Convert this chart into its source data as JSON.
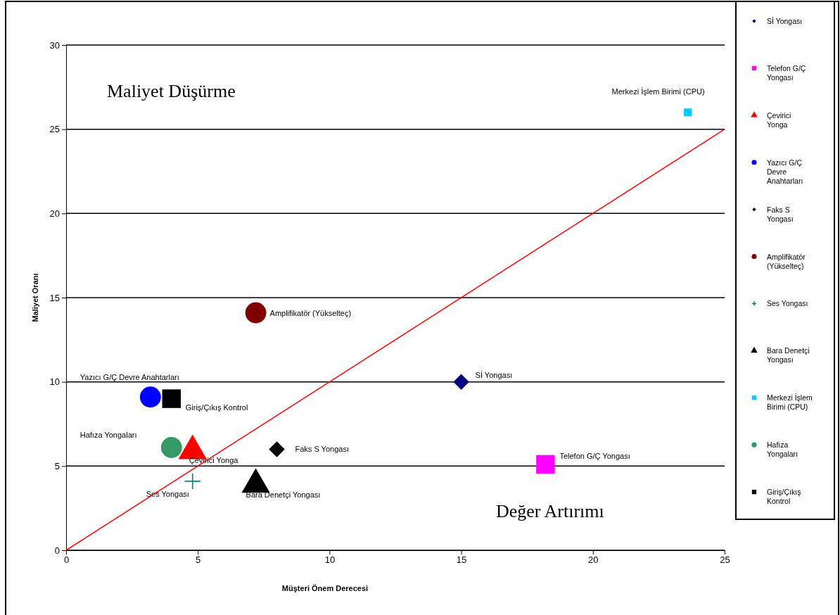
{
  "chart_data": {
    "type": "scatter",
    "xlabel": "Müşteri Önem Derecesi",
    "ylabel": "Maliyet Oranı",
    "xlim": [
      0,
      25
    ],
    "ylim": [
      0,
      30
    ],
    "xticks": [
      0,
      5,
      10,
      15,
      20,
      25
    ],
    "yticks": [
      0,
      5,
      10,
      15,
      20,
      25,
      30
    ],
    "grid": "y",
    "legend": "right",
    "annotations": [
      "Maliyet Düşürme",
      "Değer Artırımı"
    ],
    "series": [
      {
        "name": "Sİ Yongası",
        "color": "#000080",
        "marker": "diamond",
        "x": [
          15
        ],
        "values": [
          10
        ]
      },
      {
        "name": "Telefon G/Ç Yongası",
        "color": "#ff00ff",
        "marker": "square",
        "x": [
          18.2
        ],
        "values": [
          5.1
        ]
      },
      {
        "name": "Çevirici Yonga",
        "color": "#ff0000",
        "marker": "triangle",
        "x": [
          4.8
        ],
        "values": [
          5.9
        ]
      },
      {
        "name": "Yazıcı G/Ç Devre Anahtarları",
        "color": "#0000ff",
        "marker": "circle",
        "x": [
          3.2
        ],
        "values": [
          9.1
        ]
      },
      {
        "name": "Faks S Yongası",
        "color": "#000000",
        "marker": "diamond",
        "x": [
          8
        ],
        "values": [
          6
        ]
      },
      {
        "name": "Amplifikatör (Yükselteç)",
        "color": "#800000",
        "marker": "circle",
        "x": [
          7.2
        ],
        "values": [
          14.1
        ]
      },
      {
        "name": "Ses Yongası",
        "color": "#008080",
        "marker": "cross",
        "x": [
          4.8
        ],
        "values": [
          4.1
        ]
      },
      {
        "name": "Bara Denetçi Yongası",
        "color": "#000000",
        "marker": "triangle",
        "x": [
          7.2
        ],
        "values": [
          3.9
        ]
      },
      {
        "name": "Merkezi İşlem Birimi (CPU)",
        "color": "#00ccff",
        "marker": "square",
        "x": [
          23.6
        ],
        "values": [
          26
        ]
      },
      {
        "name": "Hafıza Yongaları",
        "color": "#339966",
        "marker": "circle",
        "x": [
          4
        ],
        "values": [
          6.1
        ]
      },
      {
        "name": "Giriş/Çıkış Kontrol",
        "color": "#000000",
        "marker": "square",
        "x": [
          4
        ],
        "values": [
          9
        ]
      },
      {
        "type": "line",
        "color": "#ff0000",
        "marker": "none",
        "x": [
          0,
          25
        ],
        "values": [
          0,
          25
        ]
      }
    ]
  }
}
